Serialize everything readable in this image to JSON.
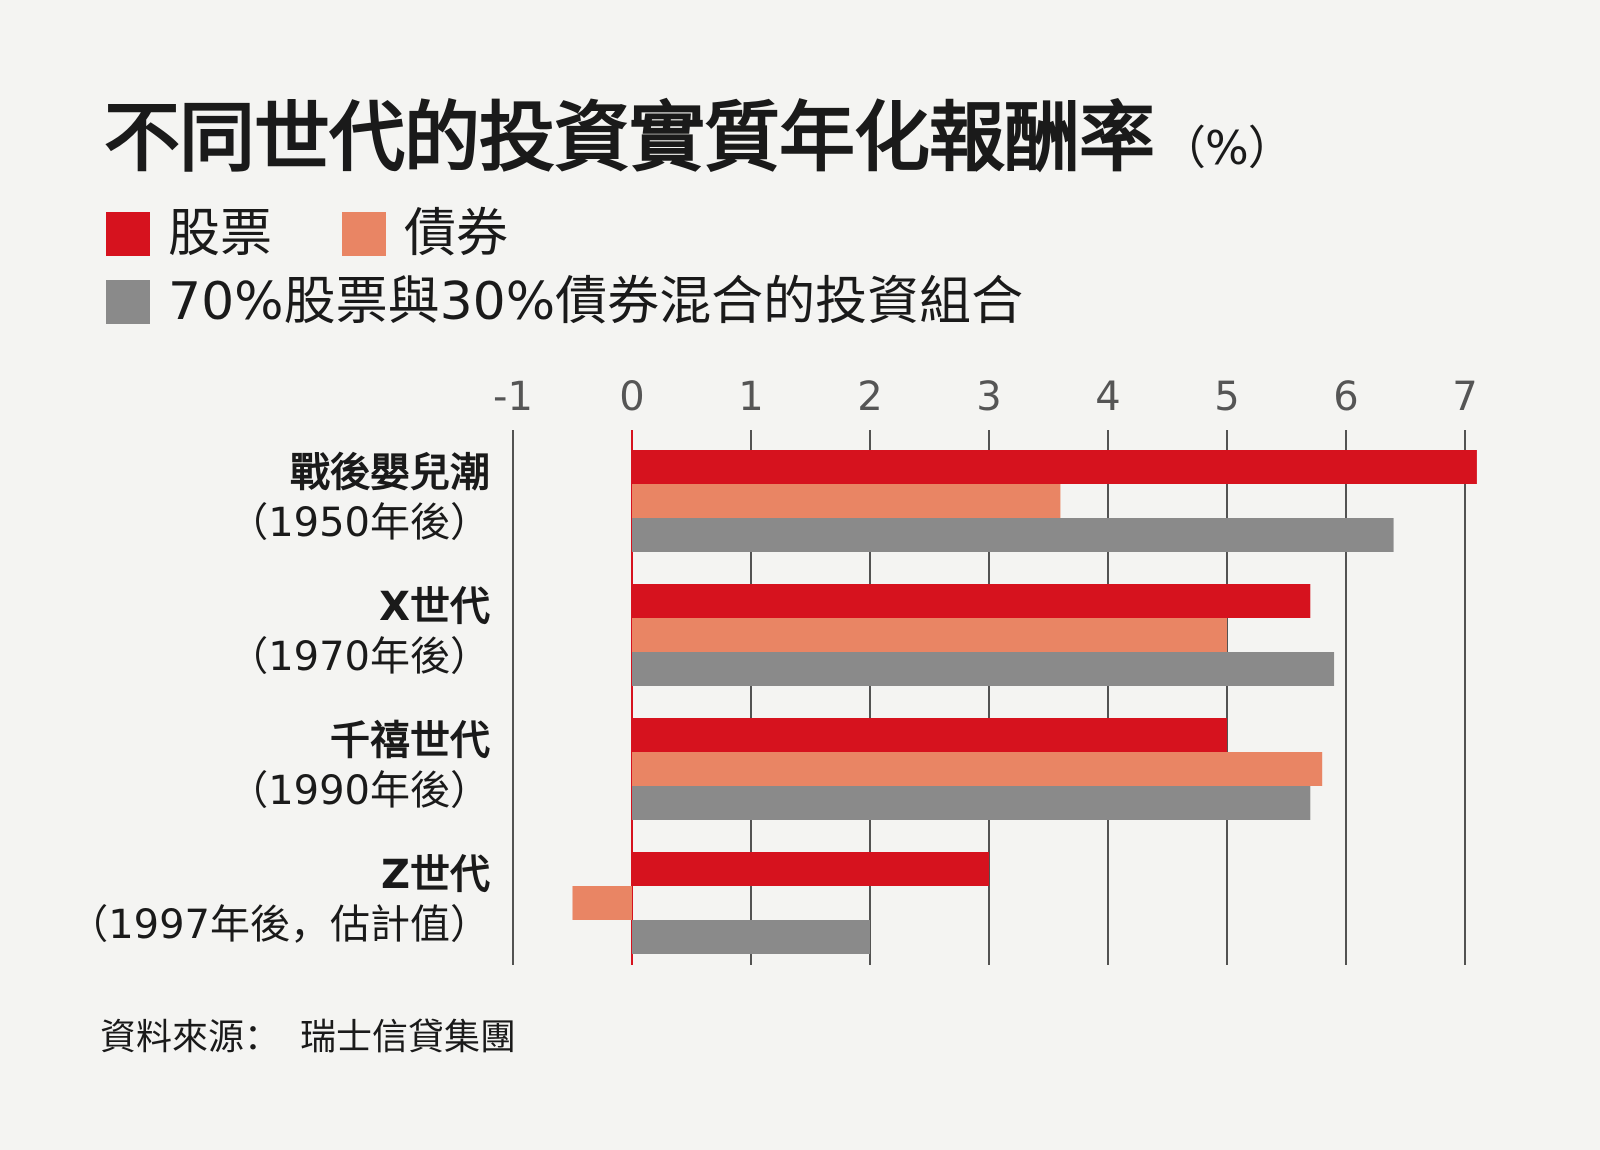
{
  "title": "不同世代的投資實質年化報酬率",
  "title_unit": "（%）",
  "source": {
    "label": "資料來源：",
    "value": "瑞士信貸集團"
  },
  "colors": {
    "stocks": "#d6121e",
    "bonds": "#e98564",
    "mixed": "#8a8a8a",
    "grid": "#2a2a2a"
  },
  "chart_data": {
    "type": "bar",
    "orientation": "horizontal",
    "xlim": [
      -1,
      7
    ],
    "x_ticks": [
      "-1",
      "0",
      "1",
      "2",
      "3",
      "4",
      "5",
      "6",
      "7"
    ],
    "grid": true,
    "legend_position": "top",
    "categories": [
      {
        "name": "戰後嬰兒潮",
        "sub": "（1950年後）"
      },
      {
        "name": "X世代",
        "sub": "（1970年後）"
      },
      {
        "name": "千禧世代",
        "sub": "（1990年後）"
      },
      {
        "name": "Z世代",
        "sub": "（1997年後，估計值）"
      }
    ],
    "series": [
      {
        "name": "股票",
        "values": [
          7.1,
          5.7,
          5.0,
          3.0
        ]
      },
      {
        "name": "債券",
        "values": [
          3.6,
          5.0,
          5.8,
          -0.5
        ]
      },
      {
        "name": "70%股票與30%債券混合的投資組合",
        "values": [
          6.4,
          5.9,
          5.7,
          2.0
        ]
      }
    ]
  }
}
